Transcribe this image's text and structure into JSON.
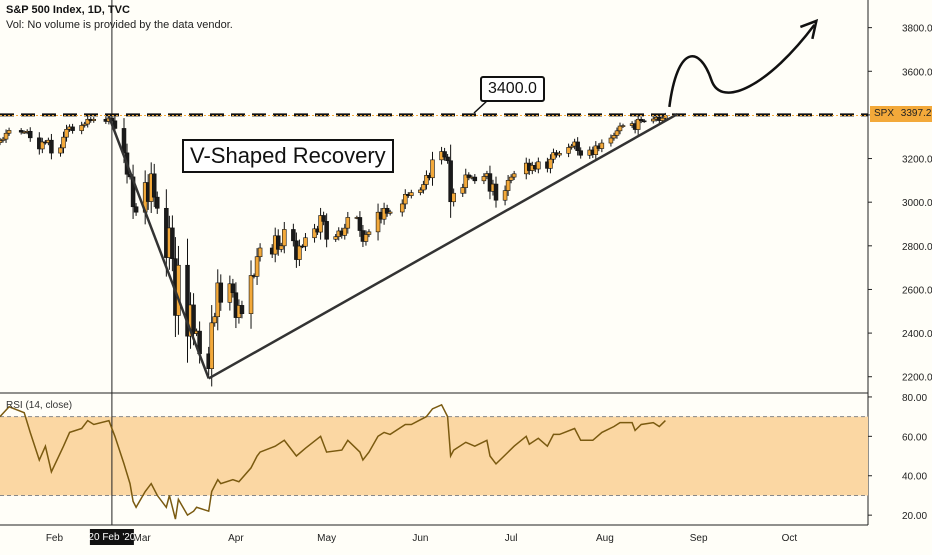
{
  "header": {
    "title": "S&P 500 Index, 1D, TVC",
    "volume_note": "Vol: No volume is provided by the data vendor."
  },
  "annotations": {
    "v_shape": "V-Shaped Recovery",
    "level_label": "3400.0"
  },
  "price_tag": {
    "symbol": "SPX",
    "value": "3397.2",
    "color": "#f3a93a"
  },
  "crosshair_date": "20 Feb '20",
  "rsi": {
    "label": "RSI (14, close)",
    "band_color": "#fbd7a3",
    "upper": 70,
    "lower": 30
  },
  "colors": {
    "up_candle": "#f3a93a",
    "down_candle": "#1a1a1a",
    "rsi_line": "#7a5a10",
    "background": "#fffef8"
  },
  "chart_data": [
    {
      "type": "candlestick",
      "title": "S&P 500 Index, 1D, TVC",
      "y_ticks": [
        2200,
        2400,
        2600,
        2800,
        3000,
        3200,
        3400,
        3600,
        3800
      ],
      "y_tick_labels": [
        "2200.0",
        "2400.0",
        "2600.0",
        "2800.0",
        "3000.0",
        "3200.0",
        "3400.0",
        "3600.0",
        "3800.0"
      ],
      "ylim": [
        2130,
        3890
      ],
      "x_tick_labels": [
        "Feb",
        "Mar",
        "Apr",
        "May",
        "Jun",
        "Jul",
        "Aug",
        "Sep",
        "Oct"
      ],
      "x_ticks": [
        "2020-02-01",
        "2020-03-01",
        "2020-04-01",
        "2020-05-01",
        "2020-06-01",
        "2020-07-01",
        "2020-08-01",
        "2020-09-01",
        "2020-10-01"
      ],
      "xlim": [
        "2020-01-14",
        "2020-10-27"
      ],
      "resistance_level": 3400,
      "last_close": 3397.2,
      "closes": [
        [
          "2020-01-14",
          3283
        ],
        [
          "2020-01-15",
          3289
        ],
        [
          "2020-01-16",
          3316
        ],
        [
          "2020-01-17",
          3329
        ],
        [
          "2020-01-21",
          3321
        ],
        [
          "2020-01-22",
          3321
        ],
        [
          "2020-01-23",
          3325
        ],
        [
          "2020-01-24",
          3295
        ],
        [
          "2020-01-27",
          3244
        ],
        [
          "2020-01-28",
          3276
        ],
        [
          "2020-01-29",
          3273
        ],
        [
          "2020-01-30",
          3284
        ],
        [
          "2020-01-31",
          3225
        ],
        [
          "2020-02-03",
          3249
        ],
        [
          "2020-02-04",
          3298
        ],
        [
          "2020-02-05",
          3334
        ],
        [
          "2020-02-06",
          3345
        ],
        [
          "2020-02-07",
          3328
        ],
        [
          "2020-02-10",
          3352
        ],
        [
          "2020-02-11",
          3358
        ],
        [
          "2020-02-12",
          3380
        ],
        [
          "2020-02-13",
          3374
        ],
        [
          "2020-02-14",
          3380
        ],
        [
          "2020-02-18",
          3370
        ],
        [
          "2020-02-19",
          3386
        ],
        [
          "2020-02-20",
          3373
        ],
        [
          "2020-02-21",
          3338
        ],
        [
          "2020-02-24",
          3226
        ],
        [
          "2020-02-25",
          3128
        ],
        [
          "2020-02-26",
          3116
        ],
        [
          "2020-02-27",
          2979
        ],
        [
          "2020-02-28",
          2954
        ],
        [
          "2020-03-02",
          3090
        ],
        [
          "2020-03-03",
          3003
        ],
        [
          "2020-03-04",
          3130
        ],
        [
          "2020-03-05",
          3023
        ],
        [
          "2020-03-06",
          2972
        ],
        [
          "2020-03-09",
          2746
        ],
        [
          "2020-03-10",
          2882
        ],
        [
          "2020-03-11",
          2741
        ],
        [
          "2020-03-12",
          2481
        ],
        [
          "2020-03-13",
          2711
        ],
        [
          "2020-03-16",
          2386
        ],
        [
          "2020-03-17",
          2529
        ],
        [
          "2020-03-18",
          2398
        ],
        [
          "2020-03-19",
          2409
        ],
        [
          "2020-03-20",
          2305
        ],
        [
          "2020-03-23",
          2237
        ],
        [
          "2020-03-24",
          2447
        ],
        [
          "2020-03-25",
          2475
        ],
        [
          "2020-03-26",
          2630
        ],
        [
          "2020-03-27",
          2541
        ],
        [
          "2020-03-30",
          2626
        ],
        [
          "2020-03-31",
          2585
        ],
        [
          "2020-04-01",
          2471
        ],
        [
          "2020-04-02",
          2527
        ],
        [
          "2020-04-03",
          2489
        ],
        [
          "2020-04-06",
          2664
        ],
        [
          "2020-04-07",
          2660
        ],
        [
          "2020-04-08",
          2750
        ],
        [
          "2020-04-09",
          2790
        ],
        [
          "2020-04-13",
          2762
        ],
        [
          "2020-04-14",
          2846
        ],
        [
          "2020-04-15",
          2784
        ],
        [
          "2020-04-16",
          2800
        ],
        [
          "2020-04-17",
          2875
        ],
        [
          "2020-04-20",
          2823
        ],
        [
          "2020-04-21",
          2737
        ],
        [
          "2020-04-22",
          2799
        ],
        [
          "2020-04-23",
          2798
        ],
        [
          "2020-04-24",
          2837
        ],
        [
          "2020-04-27",
          2878
        ],
        [
          "2020-04-28",
          2863
        ],
        [
          "2020-04-29",
          2939
        ],
        [
          "2020-04-30",
          2912
        ],
        [
          "2020-05-01",
          2830
        ],
        [
          "2020-05-04",
          2842
        ],
        [
          "2020-05-05",
          2868
        ],
        [
          "2020-05-06",
          2848
        ],
        [
          "2020-05-07",
          2881
        ],
        [
          "2020-05-08",
          2930
        ],
        [
          "2020-05-11",
          2930
        ],
        [
          "2020-05-12",
          2870
        ],
        [
          "2020-05-13",
          2820
        ],
        [
          "2020-05-14",
          2852
        ],
        [
          "2020-05-15",
          2864
        ],
        [
          "2020-05-18",
          2954
        ],
        [
          "2020-05-19",
          2922
        ],
        [
          "2020-05-20",
          2972
        ],
        [
          "2020-05-21",
          2949
        ],
        [
          "2020-05-22",
          2955
        ],
        [
          "2020-05-26",
          2992
        ],
        [
          "2020-05-27",
          3036
        ],
        [
          "2020-05-28",
          3030
        ],
        [
          "2020-05-29",
          3044
        ],
        [
          "2020-06-01",
          3056
        ],
        [
          "2020-06-02",
          3081
        ],
        [
          "2020-06-03",
          3123
        ],
        [
          "2020-06-04",
          3112
        ],
        [
          "2020-06-05",
          3194
        ],
        [
          "2020-06-08",
          3232
        ],
        [
          "2020-06-09",
          3207
        ],
        [
          "2020-06-10",
          3190
        ],
        [
          "2020-06-11",
          3002
        ],
        [
          "2020-06-12",
          3041
        ],
        [
          "2020-06-15",
          3067
        ],
        [
          "2020-06-16",
          3125
        ],
        [
          "2020-06-17",
          3113
        ],
        [
          "2020-06-18",
          3115
        ],
        [
          "2020-06-19",
          3098
        ],
        [
          "2020-06-22",
          3118
        ],
        [
          "2020-06-23",
          3131
        ],
        [
          "2020-06-24",
          3050
        ],
        [
          "2020-06-25",
          3083
        ],
        [
          "2020-06-26",
          3009
        ],
        [
          "2020-06-29",
          3053
        ],
        [
          "2020-06-30",
          3100
        ],
        [
          "2020-07-01",
          3115
        ],
        [
          "2020-07-02",
          3130
        ],
        [
          "2020-07-06",
          3179
        ],
        [
          "2020-07-07",
          3145
        ],
        [
          "2020-07-08",
          3169
        ],
        [
          "2020-07-09",
          3152
        ],
        [
          "2020-07-10",
          3185
        ],
        [
          "2020-07-13",
          3155
        ],
        [
          "2020-07-14",
          3197
        ],
        [
          "2020-07-15",
          3227
        ],
        [
          "2020-07-16",
          3216
        ],
        [
          "2020-07-17",
          3224
        ],
        [
          "2020-07-20",
          3251
        ],
        [
          "2020-07-21",
          3257
        ],
        [
          "2020-07-22",
          3276
        ],
        [
          "2020-07-23",
          3236
        ],
        [
          "2020-07-24",
          3215
        ],
        [
          "2020-07-27",
          3239
        ],
        [
          "2020-07-28",
          3218
        ],
        [
          "2020-07-29",
          3258
        ],
        [
          "2020-07-30",
          3246
        ],
        [
          "2020-07-31",
          3271
        ],
        [
          "2020-08-03",
          3294
        ],
        [
          "2020-08-04",
          3306
        ],
        [
          "2020-08-05",
          3327
        ],
        [
          "2020-08-06",
          3349
        ],
        [
          "2020-08-07",
          3351
        ],
        [
          "2020-08-10",
          3360
        ],
        [
          "2020-08-11",
          3333
        ],
        [
          "2020-08-12",
          3380
        ],
        [
          "2020-08-13",
          3373
        ],
        [
          "2020-08-14",
          3372
        ],
        [
          "2020-08-17",
          3381
        ],
        [
          "2020-08-18",
          3389
        ],
        [
          "2020-08-19",
          3374
        ],
        [
          "2020-08-20",
          3385
        ],
        [
          "2020-08-21",
          3397
        ]
      ],
      "trendlines": [
        {
          "from": [
            "2020-02-19",
            3393
          ],
          "to": [
            "2020-03-23",
            2192
          ]
        },
        {
          "from": [
            "2020-03-23",
            2192
          ],
          "to": [
            "2020-08-25",
            3404
          ]
        }
      ]
    },
    {
      "type": "line",
      "title": "RSI (14, close)",
      "y_ticks": [
        20,
        40,
        60,
        80
      ],
      "y_tick_labels": [
        "20.00",
        "40.00",
        "60.00",
        "80.00"
      ],
      "ylim": [
        15,
        82
      ],
      "band": [
        30,
        70
      ],
      "series": [
        {
          "name": "RSI (14, close)",
          "values": [
            [
              "2020-01-14",
              70
            ],
            [
              "2020-01-17",
              75
            ],
            [
              "2020-01-22",
              72
            ],
            [
              "2020-01-24",
              62
            ],
            [
              "2020-01-27",
              48
            ],
            [
              "2020-01-29",
              55
            ],
            [
              "2020-01-31",
              42
            ],
            [
              "2020-02-04",
              55
            ],
            [
              "2020-02-06",
              62
            ],
            [
              "2020-02-10",
              64
            ],
            [
              "2020-02-12",
              68
            ],
            [
              "2020-02-14",
              66
            ],
            [
              "2020-02-19",
              68
            ],
            [
              "2020-02-21",
              60
            ],
            [
              "2020-02-24",
              46
            ],
            [
              "2020-02-26",
              36
            ],
            [
              "2020-02-27",
              27
            ],
            [
              "2020-02-28",
              24
            ],
            [
              "2020-03-02",
              32
            ],
            [
              "2020-03-04",
              36
            ],
            [
              "2020-03-06",
              30
            ],
            [
              "2020-03-09",
              24
            ],
            [
              "2020-03-10",
              30
            ],
            [
              "2020-03-12",
              18
            ],
            [
              "2020-03-13",
              28
            ],
            [
              "2020-03-16",
              20
            ],
            [
              "2020-03-18",
              22
            ],
            [
              "2020-03-19",
              24
            ],
            [
              "2020-03-23",
              22
            ],
            [
              "2020-03-24",
              32
            ],
            [
              "2020-03-26",
              38
            ],
            [
              "2020-03-27",
              36
            ],
            [
              "2020-03-31",
              38
            ],
            [
              "2020-04-02",
              37
            ],
            [
              "2020-04-06",
              44
            ],
            [
              "2020-04-08",
              50
            ],
            [
              "2020-04-09",
              52
            ],
            [
              "2020-04-14",
              55
            ],
            [
              "2020-04-17",
              58
            ],
            [
              "2020-04-21",
              50
            ],
            [
              "2020-04-24",
              54
            ],
            [
              "2020-04-29",
              60
            ],
            [
              "2020-05-01",
              52
            ],
            [
              "2020-05-06",
              53
            ],
            [
              "2020-05-08",
              58
            ],
            [
              "2020-05-12",
              52
            ],
            [
              "2020-05-13",
              48
            ],
            [
              "2020-05-15",
              52
            ],
            [
              "2020-05-18",
              60
            ],
            [
              "2020-05-20",
              62
            ],
            [
              "2020-05-22",
              61
            ],
            [
              "2020-05-27",
              66
            ],
            [
              "2020-05-29",
              66
            ],
            [
              "2020-06-03",
              70
            ],
            [
              "2020-06-05",
              74
            ],
            [
              "2020-06-08",
              76
            ],
            [
              "2020-06-10",
              70
            ],
            [
              "2020-06-11",
              50
            ],
            [
              "2020-06-12",
              53
            ],
            [
              "2020-06-16",
              57
            ],
            [
              "2020-06-19",
              55
            ],
            [
              "2020-06-23",
              58
            ],
            [
              "2020-06-24",
              50
            ],
            [
              "2020-06-26",
              46
            ],
            [
              "2020-06-30",
              52
            ],
            [
              "2020-07-02",
              55
            ],
            [
              "2020-07-06",
              60
            ],
            [
              "2020-07-07",
              56
            ],
            [
              "2020-07-10",
              59
            ],
            [
              "2020-07-13",
              55
            ],
            [
              "2020-07-15",
              61
            ],
            [
              "2020-07-17",
              61
            ],
            [
              "2020-07-22",
              64
            ],
            [
              "2020-07-24",
              58
            ],
            [
              "2020-07-28",
              58
            ],
            [
              "2020-07-31",
              62
            ],
            [
              "2020-08-04",
              65
            ],
            [
              "2020-08-06",
              67
            ],
            [
              "2020-08-10",
              67
            ],
            [
              "2020-08-11",
              63
            ],
            [
              "2020-08-13",
              66
            ],
            [
              "2020-08-17",
              67
            ],
            [
              "2020-08-19",
              65
            ],
            [
              "2020-08-21",
              68
            ]
          ]
        }
      ]
    }
  ]
}
